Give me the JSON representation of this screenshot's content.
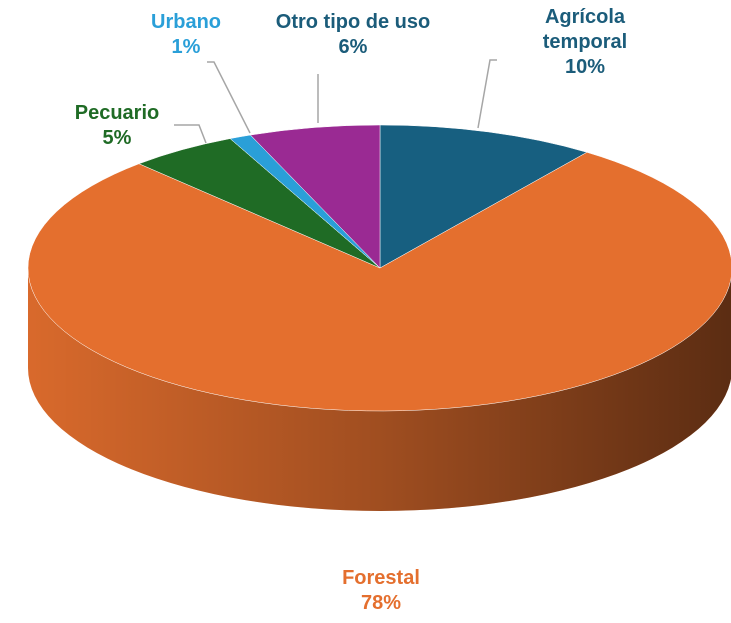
{
  "chart_data": {
    "type": "pie",
    "categories": [
      "Agrícola temporal",
      "Forestal",
      "Pecuario",
      "Urbano",
      "Otro tipo de uso"
    ],
    "values": [
      10,
      78,
      5,
      1,
      6
    ],
    "value_labels": [
      "10%",
      "78%",
      "5%",
      "1%",
      "6%"
    ],
    "colors": [
      "#175f80",
      "#e46f2e",
      "#1f6b25",
      "#2a9fd8",
      "#9a2a93"
    ],
    "label_colors": [
      "#1b5c7a",
      "#e46f2e",
      "#1f6b25",
      "#2a9fd8",
      "#1b5c7a"
    ]
  }
}
